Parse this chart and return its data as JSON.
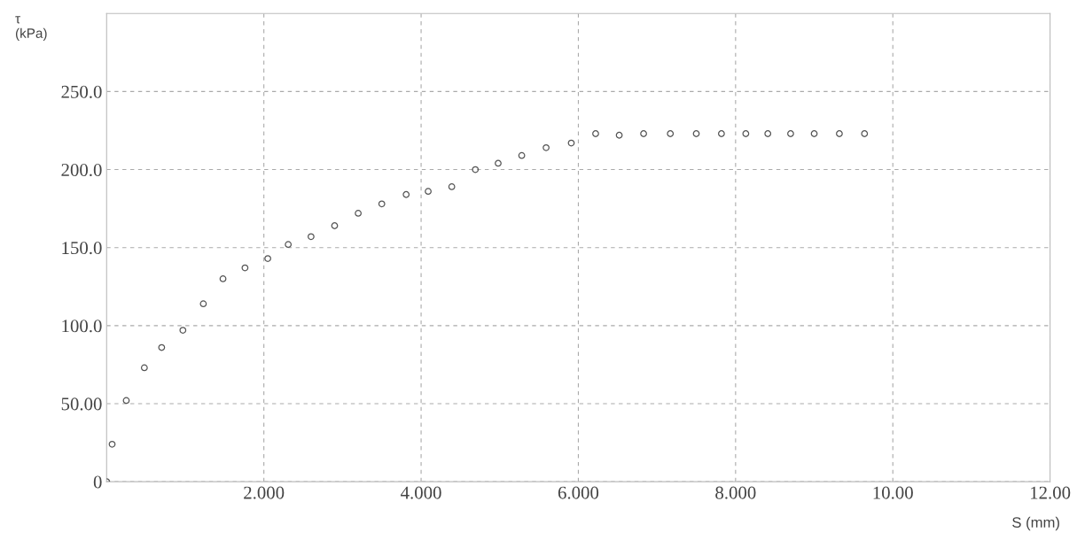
{
  "chart_data": {
    "type": "scatter",
    "xlabel": "S (mm)",
    "ylabel": "τ\n(kPa)",
    "x": [
      0,
      0.07,
      0.25,
      0.48,
      0.7,
      0.97,
      1.23,
      1.48,
      1.76,
      2.05,
      2.31,
      2.6,
      2.9,
      3.2,
      3.5,
      3.81,
      4.09,
      4.39,
      4.69,
      4.98,
      5.28,
      5.59,
      5.91,
      6.22,
      6.52,
      6.83,
      7.17,
      7.5,
      7.82,
      8.13,
      8.41,
      8.7,
      9.0,
      9.32,
      9.64
    ],
    "series": [
      {
        "color": "#555555",
        "values": [
          0,
          24,
          52,
          73,
          86,
          97,
          114,
          130,
          137,
          143,
          152,
          157,
          164,
          172,
          178,
          184,
          186,
          189,
          200,
          204,
          209,
          214,
          217,
          223,
          222,
          223,
          223,
          223,
          223,
          223,
          223,
          223,
          223,
          223,
          223
        ]
      }
    ],
    "xlim": [
      0,
      12
    ],
    "xticks": [
      {
        "value": 2,
        "label": "2.000"
      },
      {
        "value": 4,
        "label": "4.000"
      },
      {
        "value": 6,
        "label": "6.000"
      },
      {
        "value": 8,
        "label": "8.000"
      },
      {
        "value": 10,
        "label": "10.00"
      },
      {
        "value": 12,
        "label": "12.00"
      }
    ],
    "ylim": [
      0,
      300
    ],
    "yticks": [
      0,
      {
        "value": 50,
        "label": "50.00"
      },
      {
        "value": 100,
        "label": "100.0"
      },
      {
        "value": 150,
        "label": "150.0"
      },
      {
        "value": 200,
        "label": "200.0"
      },
      {
        "value": 250,
        "label": "250.0"
      }
    ],
    "grid": true,
    "marker": "circle",
    "legend": false
  }
}
